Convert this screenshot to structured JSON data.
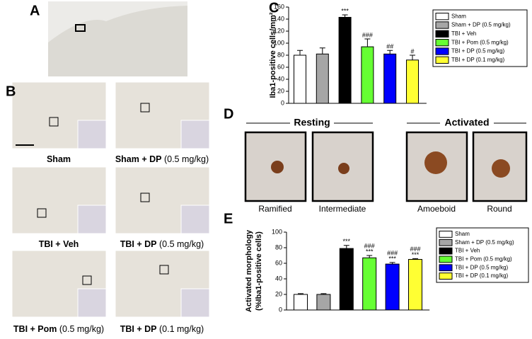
{
  "panel_labels": [
    "A",
    "B",
    "C",
    "D",
    "E"
  ],
  "panel_b": [
    {
      "label": "Sham"
    },
    {
      "label": "Sham + DP",
      "dose": "(0.5 mg/kg)"
    },
    {
      "label": "TBI + Veh"
    },
    {
      "label": "TBI + DP",
      "dose": "(0.5 mg/kg)"
    },
    {
      "label": "TBI + Pom",
      "dose": "(0.5 mg/kg)"
    },
    {
      "label": "TBI + DP",
      "dose": "(0.1 mg/kg)"
    }
  ],
  "panel_d": {
    "groups": [
      "Resting",
      "Activated"
    ],
    "cells": [
      "Ramified",
      "Intermediate",
      "Amoeboid",
      "Round"
    ]
  },
  "chart_data": [
    {
      "type": "bar",
      "y_label": "Iba1-positive cells/mm²",
      "categories": [
        "Sham",
        "Sham + DP (0.5 mg/kg)",
        "TBI + Veh",
        "TBI + Pom (0.5 mg/kg)",
        "TBI + DP (0.5 mg/kg)",
        "TBI + DP (0.1 mg/kg)"
      ],
      "colors": [
        "#ffffff",
        "#a6a6a6",
        "#000000",
        "#66ff33",
        "#0000ff",
        "#ffff33"
      ],
      "values": [
        80,
        82,
        143,
        94,
        82,
        72
      ],
      "errors": [
        8,
        10,
        4,
        13,
        6,
        8
      ],
      "annotations": [
        null,
        null,
        [
          "***"
        ],
        [
          "###"
        ],
        [
          "##"
        ],
        [
          "#"
        ]
      ],
      "ylim": [
        0,
        160
      ],
      "yticks": [
        0,
        20,
        40,
        60,
        80,
        100,
        120,
        140,
        160
      ]
    },
    {
      "type": "bar",
      "y_label": [
        "Activated morphology",
        "(%Iba1-positive cells)"
      ],
      "categories": [
        "Sham",
        "Sham + DP (0.5 mg/kg)",
        "TBI + Veh",
        "TBI + Pom (0.5 mg/kg)",
        "TBI + DP (0.5 mg/kg)",
        "TBI + DP (0.1 mg/kg)"
      ],
      "colors": [
        "#ffffff",
        "#a6a6a6",
        "#000000",
        "#66ff33",
        "#0000ff",
        "#ffff33"
      ],
      "values": [
        20,
        20,
        79,
        67,
        59,
        65
      ],
      "errors": [
        1,
        1,
        4,
        3,
        2,
        1
      ],
      "annotations": [
        null,
        null,
        [
          "***"
        ],
        [
          "###",
          "***"
        ],
        [
          "###",
          "***"
        ],
        [
          "###",
          "***"
        ]
      ],
      "ylim": [
        0,
        100
      ],
      "yticks": [
        0,
        20,
        40,
        60,
        80,
        100
      ]
    }
  ]
}
